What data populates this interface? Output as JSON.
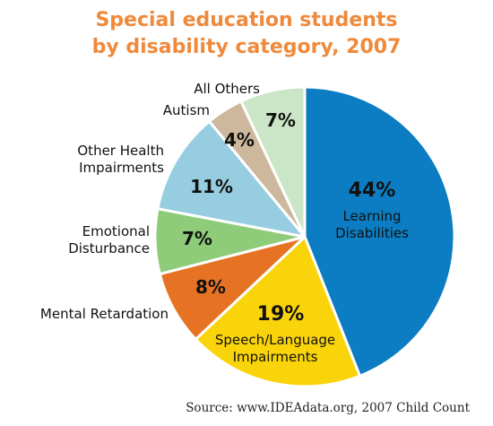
{
  "colors": {
    "title": "#ef8a3c",
    "slice_border": "#ffffff",
    "percent_text": "#111111",
    "label_text": "#111111"
  },
  "title_lines": [
    "Special education students",
    "by disability category, 2007"
  ],
  "source": "Source: www.IDEAdata.org, 2007 Child Count",
  "chart_data": {
    "type": "pie",
    "title": "Special education students by disability category, 2007",
    "slices": [
      {
        "name": "Learning Disabilities",
        "label_lines": [
          "Learning",
          "Disabilities"
        ],
        "value": 44,
        "value_label": "44%",
        "color": "#0c7dc2",
        "label_position": "inside"
      },
      {
        "name": "Speech/Language Impairments",
        "label_lines": [
          "Speech/Language",
          "Impairments"
        ],
        "value": 19,
        "value_label": "19%",
        "color": "#f9d40b",
        "label_position": "inside"
      },
      {
        "name": "Mental Retardation",
        "label_lines": [
          "Mental Retardation"
        ],
        "value": 8,
        "value_label": "8%",
        "color": "#e57323",
        "label_position": "outside"
      },
      {
        "name": "Emotional Disturbance",
        "label_lines": [
          "Emotional",
          "Disturbance"
        ],
        "value": 7,
        "value_label": "7%",
        "color": "#8fcc7a",
        "label_position": "outside"
      },
      {
        "name": "Other Health Impairments",
        "label_lines": [
          "Other Health",
          "Impairments"
        ],
        "value": 11,
        "value_label": "11%",
        "color": "#96cde0",
        "label_position": "outside"
      },
      {
        "name": "Autism",
        "label_lines": [
          "Autism"
        ],
        "value": 4,
        "value_label": "4%",
        "color": "#cdb89e",
        "label_position": "outside"
      },
      {
        "name": "All Others",
        "label_lines": [
          "All Others"
        ],
        "value": 7,
        "value_label": "7%",
        "color": "#cbe6c6",
        "label_position": "outside"
      }
    ]
  }
}
